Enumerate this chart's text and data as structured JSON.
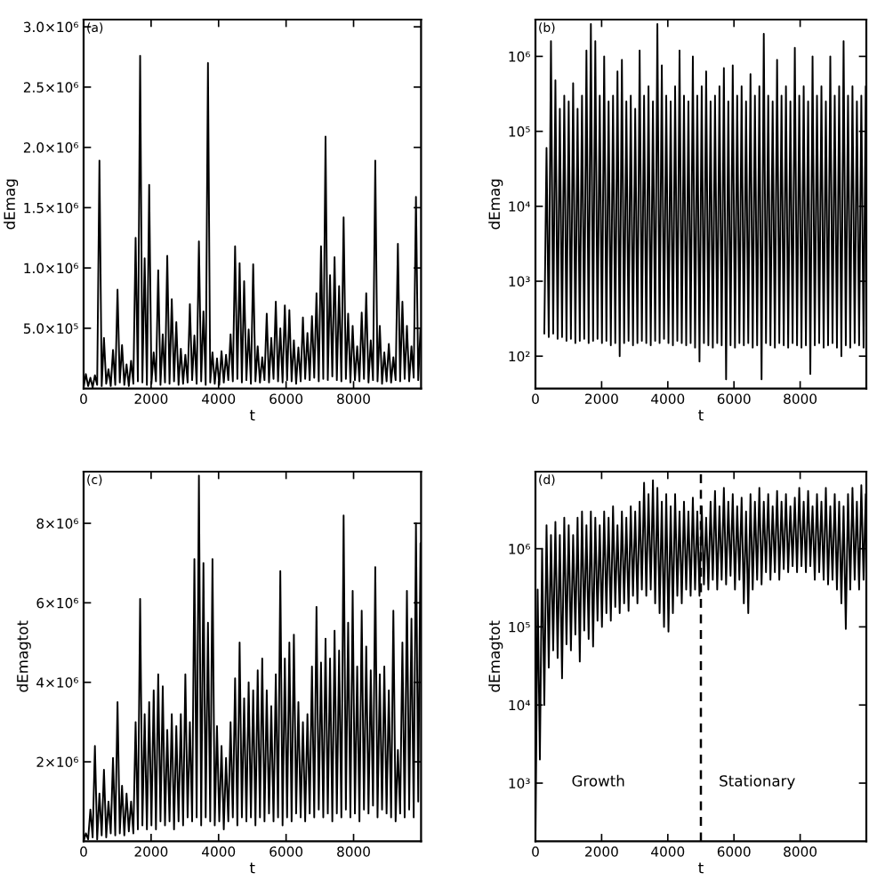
{
  "chart_data": [
    {
      "type": "line",
      "title": "(a)",
      "xlabel": "t",
      "ylabel": "dEmag",
      "x": [
        0,
        67,
        134,
        201,
        268,
        335,
        402,
        469,
        536,
        603,
        670,
        737,
        804,
        871,
        938,
        1005,
        1072,
        1139,
        1206,
        1273,
        1340,
        1407,
        1474,
        1541,
        1608,
        1675,
        1742,
        1809,
        1876,
        1943,
        2010,
        2077,
        2144,
        2211,
        2278,
        2345,
        2412,
        2479,
        2546,
        2613,
        2680,
        2747,
        2814,
        2881,
        2948,
        3015,
        3082,
        3149,
        3216,
        3283,
        3350,
        3417,
        3484,
        3551,
        3618,
        3685,
        3752,
        3819,
        3886,
        3953,
        4020,
        4087,
        4154,
        4221,
        4288,
        4355,
        4422,
        4489,
        4556,
        4623,
        4690,
        4757,
        4824,
        4891,
        4958,
        5025,
        5092,
        5159,
        5226,
        5293,
        5360,
        5427,
        5494,
        5561,
        5628,
        5695,
        5762,
        5829,
        5896,
        5963,
        6030,
        6097,
        6164,
        6231,
        6298,
        6365,
        6432,
        6499,
        6566,
        6633,
        6700,
        6767,
        6834,
        6901,
        6968,
        7035,
        7102,
        7169,
        7236,
        7303,
        7370,
        7437,
        7504,
        7571,
        7638,
        7705,
        7772,
        7839,
        7906,
        7973,
        8040,
        8107,
        8174,
        8241,
        8308,
        8375,
        8442,
        8509,
        8576,
        8643,
        8710,
        8777,
        8844,
        8911,
        8978,
        9045,
        9112,
        9179,
        9246,
        9313,
        9380,
        9447,
        9514,
        9581,
        9648,
        9715,
        9782,
        9849,
        9916,
        9983
      ],
      "series": [
        {
          "color": "#000000",
          "values": [
            10000.0,
            120000.0,
            20000.0,
            90000.0,
            10000.0,
            110000.0,
            30000.0,
            1890000.0,
            20000.0,
            420000.0,
            40000.0,
            160000.0,
            20000.0,
            320000.0,
            30000.0,
            820000.0,
            50000.0,
            360000.0,
            30000.0,
            200000.0,
            20000.0,
            230000.0,
            40000.0,
            1250000.0,
            60000.0,
            2760000.0,
            50000.0,
            1080000.0,
            30000.0,
            1690000.0,
            40000.0,
            300000.0,
            60000.0,
            980000.0,
            30000.0,
            450000.0,
            50000.0,
            1100000.0,
            40000.0,
            740000.0,
            60000.0,
            550000.0,
            30000.0,
            330000.0,
            40000.0,
            280000.0,
            50000.0,
            700000.0,
            70000.0,
            440000.0,
            40000.0,
            1220000.0,
            60000.0,
            640000.0,
            30000.0,
            2700000.0,
            50000.0,
            300000.0,
            40000.0,
            250000.0,
            30000.0,
            310000.0,
            50000.0,
            280000.0,
            70000.0,
            450000.0,
            60000.0,
            1180000.0,
            80000.0,
            1040000.0,
            50000.0,
            890000.0,
            70000.0,
            490000.0,
            40000.0,
            1030000.0,
            60000.0,
            350000.0,
            50000.0,
            260000.0,
            70000.0,
            620000.0,
            50000.0,
            420000.0,
            80000.0,
            720000.0,
            60000.0,
            500000.0,
            50000.0,
            690000.0,
            70000.0,
            650000.0,
            60000.0,
            400000.0,
            40000.0,
            340000.0,
            60000.0,
            590000.0,
            80000.0,
            460000.0,
            70000.0,
            600000.0,
            90000.0,
            790000.0,
            60000.0,
            1180000.0,
            80000.0,
            2090000.0,
            70000.0,
            940000.0,
            100000.0,
            1090000.0,
            70000.0,
            850000.0,
            60000.0,
            1420000.0,
            80000.0,
            620000.0,
            50000.0,
            520000.0,
            70000.0,
            350000.0,
            60000.0,
            630000.0,
            80000.0,
            790000.0,
            50000.0,
            400000.0,
            70000.0,
            1890000.0,
            60000.0,
            520000.0,
            40000.0,
            300000.0,
            60000.0,
            370000.0,
            50000.0,
            260000.0,
            70000.0,
            1200000.0,
            60000.0,
            720000.0,
            80000.0,
            520000.0,
            60000.0,
            350000.0,
            90000.0,
            1590000.0,
            70000.0,
            500000.0
          ]
        }
      ],
      "xlim": [
        0,
        10000
      ],
      "ylim": [
        0,
        3060000.0
      ],
      "xticks": [
        0,
        2000,
        4000,
        6000,
        8000
      ],
      "yticks": [
        {
          "value": 500000,
          "label": "5.0×10⁵"
        },
        {
          "value": 1000000,
          "label": "1.0×10⁶"
        },
        {
          "value": 1500000,
          "label": "1.5×10⁶"
        },
        {
          "value": 2000000,
          "label": "2.0×10⁶"
        },
        {
          "value": 2500000,
          "label": "2.5×10⁶"
        },
        {
          "value": 3000000,
          "label": "3.0×10⁶"
        }
      ]
    },
    {
      "type": "line",
      "title": "(b)",
      "xlabel": "t",
      "ylabel": "dEmag",
      "log": "y",
      "x": [
        268,
        335,
        402,
        469,
        536,
        603,
        670,
        737,
        804,
        871,
        938,
        1005,
        1072,
        1139,
        1206,
        1273,
        1340,
        1407,
        1474,
        1541,
        1608,
        1675,
        1742,
        1809,
        1876,
        1943,
        2010,
        2077,
        2144,
        2211,
        2278,
        2345,
        2412,
        2479,
        2546,
        2613,
        2680,
        2747,
        2814,
        2881,
        2948,
        3015,
        3082,
        3149,
        3216,
        3283,
        3350,
        3417,
        3484,
        3551,
        3618,
        3685,
        3752,
        3819,
        3886,
        3953,
        4020,
        4087,
        4154,
        4221,
        4288,
        4355,
        4422,
        4489,
        4556,
        4623,
        4690,
        4757,
        4824,
        4891,
        4958,
        5025,
        5092,
        5159,
        5226,
        5293,
        5360,
        5427,
        5494,
        5561,
        5628,
        5695,
        5762,
        5829,
        5896,
        5963,
        6030,
        6097,
        6164,
        6231,
        6298,
        6365,
        6432,
        6499,
        6566,
        6633,
        6700,
        6767,
        6834,
        6901,
        6968,
        7035,
        7102,
        7169,
        7236,
        7303,
        7370,
        7437,
        7504,
        7571,
        7638,
        7705,
        7772,
        7839,
        7906,
        7973,
        8040,
        8107,
        8174,
        8241,
        8308,
        8375,
        8442,
        8509,
        8576,
        8643,
        8710,
        8777,
        8844,
        8911,
        8978,
        9045,
        9112,
        9179,
        9246,
        9313,
        9380,
        9447,
        9514,
        9581,
        9648,
        9715,
        9782,
        9849,
        9916,
        9983
      ],
      "series": [
        {
          "color": "#000000",
          "values": [
            200,
            60000.0,
            180,
            1600000.0,
            200,
            480000.0,
            170,
            200000.0,
            180,
            300000.0,
            160,
            250000.0,
            170,
            440000.0,
            150,
            200000.0,
            160,
            300000.0,
            170,
            1200000.0,
            150,
            2700000.0,
            160,
            1600000.0,
            170,
            300000.0,
            150,
            1000000.0,
            160,
            250000.0,
            140,
            300000.0,
            150,
            630000.0,
            100,
            900000.0,
            150,
            250000.0,
            160,
            300000.0,
            140,
            200000.0,
            150,
            1200000.0,
            160,
            300000.0,
            150,
            400000.0,
            140,
            250000.0,
            160,
            2700000.0,
            150,
            760000.0,
            170,
            300000.0,
            150,
            250000.0,
            140,
            400000.0,
            160,
            1200000.0,
            150,
            300000.0,
            140,
            250000.0,
            150,
            1000000.0,
            130,
            300000.0,
            85,
            400000.0,
            150,
            630000.0,
            140,
            250000.0,
            130,
            300000.0,
            150,
            400000.0,
            140,
            700000.0,
            49,
            250000.0,
            140,
            760000.0,
            130,
            300000.0,
            150,
            400000.0,
            140,
            250000.0,
            150,
            580000.0,
            130,
            300000.0,
            140,
            400000.0,
            49,
            2000000.0,
            150,
            300000.0,
            140,
            250000.0,
            130,
            900000.0,
            150,
            300000.0,
            140,
            400000.0,
            130,
            250000.0,
            150,
            1300000.0,
            140,
            300000.0,
            130,
            400000.0,
            140,
            250000.0,
            58,
            1000000.0,
            140,
            300000.0,
            150,
            400000.0,
            130,
            250000.0,
            140,
            1000000.0,
            150,
            300000.0,
            130,
            400000.0,
            100,
            1600000.0,
            140,
            300000.0,
            130,
            400000.0,
            150,
            250000.0,
            140,
            300000.0,
            130,
            400000.0
          ]
        }
      ],
      "xlim": [
        0,
        10000
      ],
      "ylim": [
        37,
        3100000.0
      ],
      "xticks": [
        0,
        2000,
        4000,
        6000,
        8000
      ],
      "yticks": [
        {
          "value": 100,
          "label": "10²"
        },
        {
          "value": 1000,
          "label": "10³"
        },
        {
          "value": 10000,
          "label": "10⁴"
        },
        {
          "value": 100000,
          "label": "10⁵"
        },
        {
          "value": 1000000,
          "label": "10⁶"
        }
      ]
    },
    {
      "type": "line",
      "title": "(c)",
      "xlabel": "t",
      "ylabel": "dEmagtot",
      "x": [
        0,
        67,
        134,
        201,
        268,
        335,
        402,
        469,
        536,
        603,
        670,
        737,
        804,
        871,
        938,
        1005,
        1072,
        1139,
        1206,
        1273,
        1340,
        1407,
        1474,
        1541,
        1608,
        1675,
        1742,
        1809,
        1876,
        1943,
        2010,
        2077,
        2144,
        2211,
        2278,
        2345,
        2412,
        2479,
        2546,
        2613,
        2680,
        2747,
        2814,
        2881,
        2948,
        3015,
        3082,
        3149,
        3216,
        3283,
        3350,
        3417,
        3484,
        3551,
        3618,
        3685,
        3752,
        3819,
        3886,
        3953,
        4020,
        4087,
        4154,
        4221,
        4288,
        4355,
        4422,
        4489,
        4556,
        4623,
        4690,
        4757,
        4824,
        4891,
        4958,
        5025,
        5092,
        5159,
        5226,
        5293,
        5360,
        5427,
        5494,
        5561,
        5628,
        5695,
        5762,
        5829,
        5896,
        5963,
        6030,
        6097,
        6164,
        6231,
        6298,
        6365,
        6432,
        6499,
        6566,
        6633,
        6700,
        6767,
        6834,
        6901,
        6968,
        7035,
        7102,
        7169,
        7236,
        7303,
        7370,
        7437,
        7504,
        7571,
        7638,
        7705,
        7772,
        7839,
        7906,
        7973,
        8040,
        8107,
        8174,
        8241,
        8308,
        8375,
        8442,
        8509,
        8576,
        8643,
        8710,
        8777,
        8844,
        8911,
        8978,
        9045,
        9112,
        9179,
        9246,
        9313,
        9380,
        9447,
        9514,
        9581,
        9648,
        9715,
        9782,
        9849,
        9916,
        9983
      ],
      "series": [
        {
          "color": "#000000",
          "values": [
            0,
            200000.0,
            50000.0,
            800000.0,
            100000.0,
            2400000.0,
            50000.0,
            1200000.0,
            150000.0,
            1800000.0,
            100000.0,
            1000000.0,
            200000.0,
            2100000.0,
            150000.0,
            3500000.0,
            200000.0,
            1400000.0,
            150000.0,
            1200000.0,
            250000.0,
            1000000.0,
            200000.0,
            3000000.0,
            300000.0,
            6100000.0,
            400000.0,
            3200000.0,
            300000.0,
            3500000.0,
            400000.0,
            3800000.0,
            300000.0,
            4200000.0,
            500000.0,
            3900000.0,
            400000.0,
            2800000.0,
            500000.0,
            3200000.0,
            300000.0,
            2900000.0,
            500000.0,
            3200000.0,
            400000.0,
            4200000.0,
            600000.0,
            3000000.0,
            500000.0,
            7100000.0,
            600000.0,
            9200000.0,
            400000.0,
            7000000.0,
            600000.0,
            5500000.0,
            500000.0,
            7100000.0,
            400000.0,
            2900000.0,
            500000.0,
            2400000.0,
            300000.0,
            2100000.0,
            500000.0,
            3000000.0,
            600000.0,
            4100000.0,
            400000.0,
            5000000.0,
            600000.0,
            3600000.0,
            500000.0,
            4000000.0,
            600000.0,
            3800000.0,
            400000.0,
            4300000.0,
            600000.0,
            4600000.0,
            500000.0,
            3800000.0,
            700000.0,
            3400000.0,
            500000.0,
            4200000.0,
            600000.0,
            6800000.0,
            400000.0,
            4600000.0,
            600000.0,
            5000000.0,
            500000.0,
            5200000.0,
            700000.0,
            3500000.0,
            600000.0,
            3000000.0,
            500000.0,
            3200000.0,
            700000.0,
            4400000.0,
            600000.0,
            5900000.0,
            800000.0,
            4500000.0,
            600000.0,
            5100000.0,
            700000.0,
            4600000.0,
            500000.0,
            5300000.0,
            700000.0,
            4800000.0,
            600000.0,
            8200000.0,
            800000.0,
            5500000.0,
            600000.0,
            6300000.0,
            700000.0,
            4400000.0,
            500000.0,
            5800000.0,
            800000.0,
            4900000.0,
            700000.0,
            4300000.0,
            900000.0,
            6900000.0,
            600000.0,
            4200000.0,
            800000.0,
            4400000.0,
            700000.0,
            3800000.0,
            600000.0,
            5800000.0,
            500000.0,
            2300000.0,
            700000.0,
            5000000.0,
            600000.0,
            6300000.0,
            800000.0,
            5600000.0,
            600000.0,
            8000000.0,
            1000000.0,
            7500000.0
          ]
        }
      ],
      "xlim": [
        0,
        10000
      ],
      "ylim": [
        0,
        9300000.0
      ],
      "xticks": [
        0,
        2000,
        4000,
        6000,
        8000
      ],
      "yticks": [
        {
          "value": 2000000,
          "label": "2×10⁶"
        },
        {
          "value": 4000000,
          "label": "4×10⁶"
        },
        {
          "value": 6000000,
          "label": "6×10⁶"
        },
        {
          "value": 8000000,
          "label": "8×10⁶"
        }
      ]
    },
    {
      "type": "line",
      "title": "(d)",
      "xlabel": "t",
      "ylabel": "dEmagtot",
      "log": "y",
      "x": [
        0,
        67,
        134,
        201,
        268,
        335,
        402,
        469,
        536,
        603,
        670,
        737,
        804,
        871,
        938,
        1005,
        1072,
        1139,
        1206,
        1273,
        1340,
        1407,
        1474,
        1541,
        1608,
        1675,
        1742,
        1809,
        1876,
        1943,
        2010,
        2077,
        2144,
        2211,
        2278,
        2345,
        2412,
        2479,
        2546,
        2613,
        2680,
        2747,
        2814,
        2881,
        2948,
        3015,
        3082,
        3149,
        3216,
        3283,
        3350,
        3417,
        3484,
        3551,
        3618,
        3685,
        3752,
        3819,
        3886,
        3953,
        4020,
        4087,
        4154,
        4221,
        4288,
        4355,
        4422,
        4489,
        4556,
        4623,
        4690,
        4757,
        4824,
        4891,
        4958,
        5025,
        5092,
        5159,
        5226,
        5293,
        5360,
        5427,
        5494,
        5561,
        5628,
        5695,
        5762,
        5829,
        5896,
        5963,
        6030,
        6097,
        6164,
        6231,
        6298,
        6365,
        6432,
        6499,
        6566,
        6633,
        6700,
        6767,
        6834,
        6901,
        6968,
        7035,
        7102,
        7169,
        7236,
        7303,
        7370,
        7437,
        7504,
        7571,
        7638,
        7705,
        7772,
        7839,
        7906,
        7973,
        8040,
        8107,
        8174,
        8241,
        8308,
        8375,
        8442,
        8509,
        8576,
        8643,
        8710,
        8777,
        8844,
        8911,
        8978,
        9045,
        9112,
        9179,
        9246,
        9313,
        9380,
        9447,
        9514,
        9581,
        9648,
        9715,
        9782,
        9849,
        9916,
        9983
      ],
      "series": [
        {
          "color": "#000000",
          "values": [
            200,
            300000.0,
            2000.0,
            1000000.0,
            10000.0,
            2000000.0,
            30000.0,
            1500000.0,
            50000.0,
            2200000.0,
            40000.0,
            1500000.0,
            22000.0,
            2500000.0,
            60000.0,
            2000000.0,
            50000.0,
            1500000.0,
            80000.0,
            2500000.0,
            36000.0,
            3000000.0,
            90000.0,
            2000000.0,
            70000.0,
            3000000.0,
            56000.0,
            2500000.0,
            120000.0,
            2000000.0,
            100000.0,
            3000000.0,
            150000.0,
            2500000.0,
            120000.0,
            3500000.0,
            180000.0,
            2000000.0,
            150000.0,
            3000000.0,
            200000.0,
            2500000.0,
            160000.0,
            3500000.0,
            250000.0,
            3000000.0,
            200000.0,
            4000000.0,
            300000.0,
            7000000.0,
            250000.0,
            5000000.0,
            300000.0,
            7500000.0,
            200000.0,
            6000000.0,
            150000.0,
            4000000.0,
            100000.0,
            5000000.0,
            87000.0,
            3500000.0,
            150000.0,
            5000000.0,
            250000.0,
            3000000.0,
            200000.0,
            4000000.0,
            300000.0,
            3000000.0,
            250000.0,
            4500000.0,
            300000.0,
            3000000.0,
            250000.0,
            3500000.0,
            350000.0,
            2500000.0,
            300000.0,
            4000000.0,
            400000.0,
            5500000.0,
            300000.0,
            3500000.0,
            400000.0,
            6000000.0,
            350000.0,
            4000000.0,
            450000.0,
            5000000.0,
            300000.0,
            3500000.0,
            400000.0,
            4500000.0,
            200000.0,
            3000000.0,
            150000.0,
            5000000.0,
            300000.0,
            4000000.0,
            400000.0,
            6000000.0,
            350000.0,
            4000000.0,
            500000.0,
            5000000.0,
            400000.0,
            3500000.0,
            500000.0,
            5500000.0,
            400000.0,
            4000000.0,
            550000.0,
            5000000.0,
            500000.0,
            3500000.0,
            600000.0,
            4500000.0,
            500000.0,
            6000000.0,
            600000.0,
            4000000.0,
            500000.0,
            5500000.0,
            600000.0,
            3500000.0,
            400000.0,
            5000000.0,
            500000.0,
            4000000.0,
            400000.0,
            6000000.0,
            350000.0,
            3500000.0,
            400000.0,
            5000000.0,
            300000.0,
            4000000.0,
            200000.0,
            3500000.0,
            94000.0,
            5000000.0,
            300000.0,
            6000000.0,
            400000.0,
            4000000.0,
            300000.0,
            6500000.0,
            400000.0,
            5000000.0
          ]
        }
      ],
      "xlim": [
        0,
        10000
      ],
      "ylim": [
        180,
        9700000.0
      ],
      "xticks": [
        0,
        2000,
        4000,
        6000,
        8000
      ],
      "yticks": [
        {
          "value": 1000,
          "label": "10³"
        },
        {
          "value": 10000,
          "label": "10⁴"
        },
        {
          "value": 100000,
          "label": "10⁵"
        },
        {
          "value": 1000000,
          "label": "10⁶"
        }
      ],
      "ref_lines": [
        {
          "axis": "x",
          "value": 5000,
          "line_style": "dashed",
          "color": "#000000"
        }
      ],
      "annotations": [
        "Growth",
        "Stationary"
      ]
    }
  ]
}
